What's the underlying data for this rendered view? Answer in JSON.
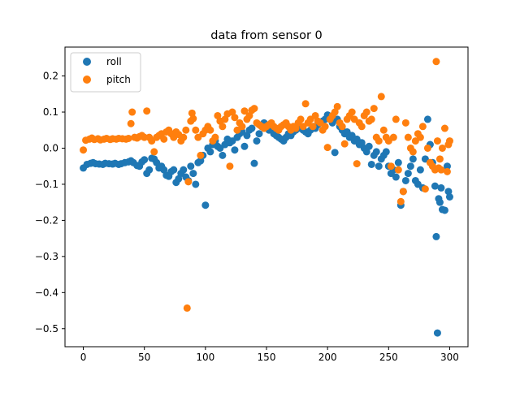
{
  "chart_data": {
    "type": "scatter",
    "title": "data from sensor 0",
    "xlabel": "",
    "ylabel": "",
    "xlim": [
      -15,
      315
    ],
    "ylim": [
      -0.55,
      0.28
    ],
    "x_ticks": [
      0,
      50,
      100,
      150,
      200,
      250,
      300
    ],
    "x_tick_labels": [
      "0",
      "50",
      "100",
      "150",
      "200",
      "250",
      "300"
    ],
    "y_ticks": [
      0.2,
      0.1,
      0.0,
      -0.1,
      -0.2,
      -0.3,
      -0.4,
      -0.5
    ],
    "y_tick_labels": [
      "0.2",
      "0.1",
      "0.0",
      "−0.1",
      "−0.2",
      "−0.3",
      "−0.4",
      "−0.5"
    ],
    "grid": false,
    "legend_position": "top-left",
    "series": [
      {
        "name": "roll",
        "color": "#1f77b4",
        "points": [
          [
            0,
            -0.055
          ],
          [
            3,
            -0.045
          ],
          [
            6,
            -0.042
          ],
          [
            8,
            -0.04
          ],
          [
            10,
            -0.043
          ],
          [
            13,
            -0.044
          ],
          [
            16,
            -0.045
          ],
          [
            18,
            -0.042
          ],
          [
            21,
            -0.043
          ],
          [
            24,
            -0.044
          ],
          [
            26,
            -0.042
          ],
          [
            29,
            -0.045
          ],
          [
            31,
            -0.043
          ],
          [
            34,
            -0.04
          ],
          [
            37,
            -0.038
          ],
          [
            39,
            -0.035
          ],
          [
            41,
            -0.04
          ],
          [
            44,
            -0.048
          ],
          [
            46,
            -0.05
          ],
          [
            48,
            -0.038
          ],
          [
            50,
            -0.032
          ],
          [
            52,
            -0.07
          ],
          [
            54,
            -0.06
          ],
          [
            56,
            -0.028
          ],
          [
            58,
            -0.03
          ],
          [
            60,
            -0.04
          ],
          [
            62,
            -0.055
          ],
          [
            64,
            -0.05
          ],
          [
            66,
            -0.06
          ],
          [
            68,
            -0.075
          ],
          [
            70,
            -0.078
          ],
          [
            72,
            -0.065
          ],
          [
            74,
            -0.06
          ],
          [
            76,
            -0.095
          ],
          [
            78,
            -0.085
          ],
          [
            80,
            -0.07
          ],
          [
            82,
            -0.06
          ],
          [
            84,
            -0.08
          ],
          [
            86,
            -0.09
          ],
          [
            88,
            -0.05
          ],
          [
            90,
            -0.07
          ],
          [
            92,
            -0.1
          ],
          [
            94,
            -0.04
          ],
          [
            96,
            -0.035
          ],
          [
            98,
            -0.02
          ],
          [
            100,
            -0.158
          ],
          [
            102,
            0.0
          ],
          [
            104,
            -0.01
          ],
          [
            106,
            0.01
          ],
          [
            108,
            0.02
          ],
          [
            110,
            0.005
          ],
          [
            112,
            0.0
          ],
          [
            114,
            -0.02
          ],
          [
            116,
            0.01
          ],
          [
            118,
            0.025
          ],
          [
            120,
            0.015
          ],
          [
            122,
            0.02
          ],
          [
            124,
            -0.005
          ],
          [
            126,
            0.03
          ],
          [
            128,
            0.04
          ],
          [
            130,
            0.045
          ],
          [
            132,
            0.005
          ],
          [
            134,
            0.035
          ],
          [
            136,
            0.05
          ],
          [
            138,
            0.055
          ],
          [
            140,
            -0.042
          ],
          [
            142,
            0.02
          ],
          [
            144,
            0.04
          ],
          [
            146,
            0.06
          ],
          [
            148,
            0.07
          ],
          [
            150,
            0.065
          ],
          [
            152,
            0.05
          ],
          [
            154,
            0.055
          ],
          [
            156,
            0.04
          ],
          [
            158,
            0.035
          ],
          [
            160,
            0.03
          ],
          [
            162,
            0.025
          ],
          [
            164,
            0.02
          ],
          [
            166,
            0.03
          ],
          [
            168,
            0.04
          ],
          [
            170,
            0.035
          ],
          [
            172,
            0.045
          ],
          [
            174,
            0.05
          ],
          [
            176,
            0.06
          ],
          [
            178,
            0.055
          ],
          [
            180,
            0.05
          ],
          [
            182,
            0.045
          ],
          [
            184,
            0.04
          ],
          [
            186,
            0.05
          ],
          [
            188,
            0.06
          ],
          [
            190,
            0.055
          ],
          [
            192,
            0.065
          ],
          [
            194,
            0.07
          ],
          [
            196,
            0.075
          ],
          [
            198,
            0.08
          ],
          [
            200,
            0.092
          ],
          [
            202,
            0.085
          ],
          [
            204,
            0.07
          ],
          [
            206,
            -0.012
          ],
          [
            208,
            0.08
          ],
          [
            210,
            0.06
          ],
          [
            212,
            0.05
          ],
          [
            214,
            0.04
          ],
          [
            216,
            0.045
          ],
          [
            218,
            0.03
          ],
          [
            220,
            0.035
          ],
          [
            222,
            0.02
          ],
          [
            224,
            0.025
          ],
          [
            226,
            0.01
          ],
          [
            228,
            0.015
          ],
          [
            230,
            0.0
          ],
          [
            232,
            -0.01
          ],
          [
            234,
            0.005
          ],
          [
            236,
            -0.045
          ],
          [
            238,
            -0.02
          ],
          [
            240,
            -0.01
          ],
          [
            242,
            -0.05
          ],
          [
            244,
            -0.03
          ],
          [
            246,
            -0.02
          ],
          [
            248,
            -0.01
          ],
          [
            250,
            -0.05
          ],
          [
            252,
            -0.07
          ],
          [
            254,
            -0.06
          ],
          [
            256,
            -0.08
          ],
          [
            258,
            -0.04
          ],
          [
            260,
            -0.158
          ],
          [
            262,
            -0.12
          ],
          [
            264,
            -0.09
          ],
          [
            266,
            -0.07
          ],
          [
            268,
            -0.05
          ],
          [
            270,
            -0.03
          ],
          [
            272,
            -0.09
          ],
          [
            274,
            -0.1
          ],
          [
            276,
            -0.06
          ],
          [
            278,
            -0.11
          ],
          [
            280,
            -0.03
          ],
          [
            282,
            0.08
          ],
          [
            284,
            0.01
          ],
          [
            286,
            -0.04
          ],
          [
            288,
            -0.105
          ],
          [
            289,
            -0.245
          ],
          [
            290,
            -0.512
          ],
          [
            291,
            -0.14
          ],
          [
            292,
            -0.15
          ],
          [
            293,
            -0.11
          ],
          [
            294,
            -0.17
          ],
          [
            296,
            -0.172
          ],
          [
            298,
            -0.05
          ],
          [
            299,
            -0.12
          ],
          [
            300,
            -0.135
          ]
        ]
      },
      {
        "name": "pitch",
        "color": "#ff7f0e",
        "points": [
          [
            0,
            -0.005
          ],
          [
            2,
            0.022
          ],
          [
            5,
            0.025
          ],
          [
            7,
            0.028
          ],
          [
            9,
            0.024
          ],
          [
            12,
            0.026
          ],
          [
            14,
            0.023
          ],
          [
            17,
            0.025
          ],
          [
            19,
            0.027
          ],
          [
            22,
            0.024
          ],
          [
            24,
            0.026
          ],
          [
            27,
            0.025
          ],
          [
            29,
            0.027
          ],
          [
            32,
            0.026
          ],
          [
            35,
            0.025
          ],
          [
            37,
            0.027
          ],
          [
            39,
            0.068
          ],
          [
            40,
            0.1
          ],
          [
            42,
            0.03
          ],
          [
            44,
            0.028
          ],
          [
            46,
            0.032
          ],
          [
            48,
            0.035
          ],
          [
            50,
            0.03
          ],
          [
            52,
            0.103
          ],
          [
            54,
            0.03
          ],
          [
            56,
            0.02
          ],
          [
            58,
            -0.01
          ],
          [
            60,
            0.03
          ],
          [
            62,
            0.035
          ],
          [
            64,
            0.04
          ],
          [
            66,
            0.025
          ],
          [
            68,
            0.045
          ],
          [
            70,
            0.05
          ],
          [
            72,
            0.04
          ],
          [
            74,
            0.03
          ],
          [
            76,
            0.045
          ],
          [
            78,
            0.038
          ],
          [
            80,
            0.02
          ],
          [
            82,
            0.03
          ],
          [
            84,
            0.05
          ],
          [
            85,
            -0.443
          ],
          [
            86,
            -0.093
          ],
          [
            88,
            0.075
          ],
          [
            89,
            0.097
          ],
          [
            90,
            0.082
          ],
          [
            92,
            0.05
          ],
          [
            94,
            0.03
          ],
          [
            96,
            -0.02
          ],
          [
            98,
            0.04
          ],
          [
            100,
            0.05
          ],
          [
            102,
            0.06
          ],
          [
            104,
            0.05
          ],
          [
            106,
            0.02
          ],
          [
            108,
            0.03
          ],
          [
            110,
            0.09
          ],
          [
            112,
            0.075
          ],
          [
            114,
            0.06
          ],
          [
            116,
            0.08
          ],
          [
            118,
            0.095
          ],
          [
            120,
            -0.05
          ],
          [
            122,
            0.1
          ],
          [
            124,
            0.085
          ],
          [
            126,
            0.05
          ],
          [
            128,
            0.07
          ],
          [
            130,
            0.06
          ],
          [
            132,
            0.103
          ],
          [
            134,
            0.08
          ],
          [
            136,
            0.09
          ],
          [
            138,
            0.105
          ],
          [
            140,
            0.11
          ],
          [
            142,
            0.07
          ],
          [
            144,
            0.065
          ],
          [
            146,
            0.06
          ],
          [
            148,
            0.055
          ],
          [
            150,
            0.06
          ],
          [
            152,
            0.065
          ],
          [
            154,
            0.07
          ],
          [
            156,
            0.06
          ],
          [
            158,
            0.055
          ],
          [
            160,
            0.05
          ],
          [
            162,
            0.06
          ],
          [
            164,
            0.065
          ],
          [
            166,
            0.07
          ],
          [
            168,
            0.06
          ],
          [
            170,
            0.05
          ],
          [
            172,
            0.06
          ],
          [
            174,
            0.055
          ],
          [
            176,
            0.07
          ],
          [
            178,
            0.08
          ],
          [
            180,
            0.06
          ],
          [
            182,
            0.123
          ],
          [
            184,
            0.07
          ],
          [
            186,
            0.08
          ],
          [
            188,
            0.06
          ],
          [
            190,
            0.09
          ],
          [
            192,
            0.075
          ],
          [
            194,
            0.07
          ],
          [
            196,
            0.05
          ],
          [
            198,
            0.06
          ],
          [
            200,
            0.002
          ],
          [
            202,
            0.08
          ],
          [
            204,
            0.09
          ],
          [
            206,
            0.1
          ],
          [
            208,
            0.115
          ],
          [
            210,
            0.07
          ],
          [
            212,
            0.06
          ],
          [
            214,
            0.012
          ],
          [
            216,
            0.08
          ],
          [
            218,
            0.09
          ],
          [
            220,
            0.1
          ],
          [
            222,
            0.08
          ],
          [
            224,
            -0.043
          ],
          [
            226,
            0.07
          ],
          [
            228,
            0.06
          ],
          [
            230,
            0.09
          ],
          [
            232,
            0.1
          ],
          [
            234,
            0.075
          ],
          [
            236,
            0.08
          ],
          [
            238,
            0.11
          ],
          [
            240,
            0.03
          ],
          [
            242,
            0.02
          ],
          [
            244,
            0.143
          ],
          [
            246,
            0.05
          ],
          [
            248,
            0.03
          ],
          [
            250,
            0.02
          ],
          [
            252,
            -0.05
          ],
          [
            254,
            0.03
          ],
          [
            256,
            0.08
          ],
          [
            258,
            -0.06
          ],
          [
            260,
            -0.148
          ],
          [
            262,
            -0.12
          ],
          [
            264,
            0.07
          ],
          [
            266,
            0.03
          ],
          [
            268,
            0.0
          ],
          [
            270,
            -0.01
          ],
          [
            272,
            0.02
          ],
          [
            274,
            0.04
          ],
          [
            276,
            0.03
          ],
          [
            278,
            0.06
          ],
          [
            280,
            -0.113
          ],
          [
            282,
            0.0
          ],
          [
            284,
            -0.04
          ],
          [
            286,
            -0.05
          ],
          [
            288,
            -0.06
          ],
          [
            289,
            0.24
          ],
          [
            290,
            0.02
          ],
          [
            291,
            -0.055
          ],
          [
            292,
            -0.03
          ],
          [
            293,
            -0.06
          ],
          [
            294,
            0.0
          ],
          [
            296,
            0.055
          ],
          [
            298,
            -0.065
          ],
          [
            299,
            0.01
          ],
          [
            300,
            0.02
          ]
        ]
      }
    ]
  }
}
